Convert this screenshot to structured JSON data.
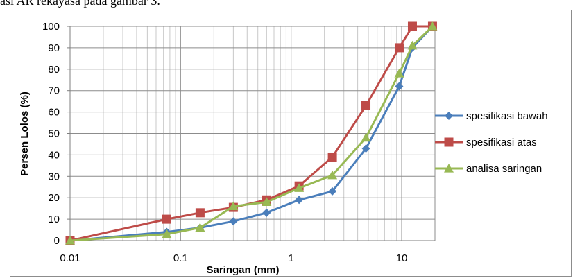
{
  "caption": "asi AR  rekayasa pada gambar 3.",
  "chart_data": {
    "type": "line",
    "xscale": "log",
    "xlim": [
      0.01,
      20
    ],
    "ylim": [
      0,
      100
    ],
    "xticks": [
      0.01,
      0.1,
      1,
      10
    ],
    "xtick_labels": [
      "0.01",
      "0.1",
      "1",
      "10"
    ],
    "yticks": [
      0,
      10,
      20,
      30,
      40,
      50,
      60,
      70,
      80,
      90,
      100
    ],
    "xlabel": "Saringan (mm)",
    "ylabel": "Persen Lolos (%)",
    "grid": true,
    "legend_position": "right",
    "series": [
      {
        "name": "spesifikasi bawah",
        "color": "#4a7ebb",
        "marker": "diamond",
        "x": [
          0.01,
          0.075,
          0.15,
          0.3,
          0.6,
          1.18,
          2.36,
          4.75,
          9.5,
          12.5,
          19
        ],
        "y": [
          0,
          4,
          6,
          9,
          13,
          19,
          23,
          43,
          72,
          90,
          100
        ]
      },
      {
        "name": "spesifikasi atas",
        "color": "#be4b48",
        "marker": "square",
        "x": [
          0.01,
          0.075,
          0.15,
          0.3,
          0.6,
          1.18,
          2.36,
          4.75,
          9.5,
          12.5,
          19
        ],
        "y": [
          0,
          10,
          13,
          15.5,
          19,
          25.5,
          39,
          63,
          90,
          100,
          100
        ]
      },
      {
        "name": "analisa saringan",
        "color": "#98b954",
        "marker": "triangle",
        "x": [
          0.01,
          0.075,
          0.15,
          0.3,
          0.6,
          1.18,
          2.36,
          4.75,
          9.5,
          12.5,
          19
        ],
        "y": [
          0,
          3,
          6,
          16,
          18,
          24.5,
          30.5,
          48,
          78,
          91,
          100
        ]
      }
    ]
  }
}
